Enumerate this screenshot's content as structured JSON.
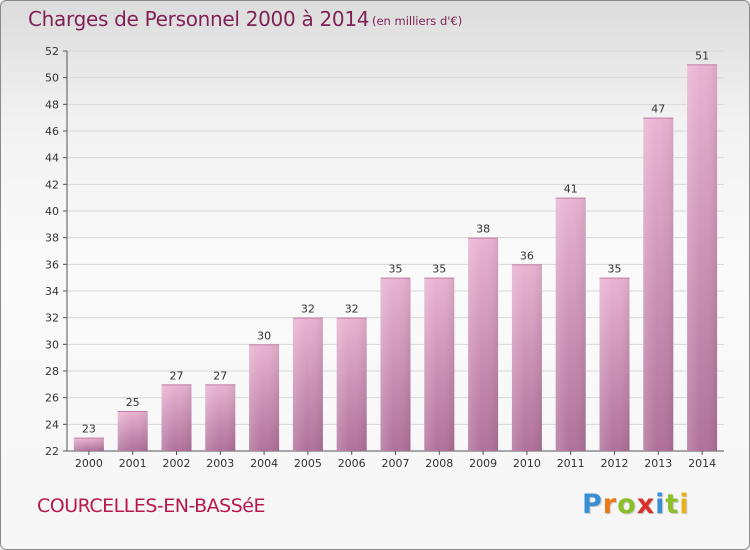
{
  "title": "Charges de Personnel 2000 à 2014",
  "subtitle": "(en milliers d'€)",
  "footer_name": "COURCELLES-EN-BASSéE",
  "brand": {
    "letters": [
      {
        "ch": "P",
        "color": "#3a8fd4"
      },
      {
        "ch": "r",
        "color": "#e87a1c"
      },
      {
        "ch": "o",
        "color": "#8bbf2a"
      },
      {
        "ch": "x",
        "color": "#d6322b"
      },
      {
        "ch": "i",
        "color": "#3a8fd4"
      },
      {
        "ch": "t",
        "color": "#8bbf2a"
      },
      {
        "ch": "i",
        "color": "#e8b21c"
      }
    ]
  },
  "colors": {
    "bar_top": "#e9b3d2",
    "bar_bottom": "#b0709a",
    "grid": "#d9d9d9",
    "axis": "#555555",
    "title": "#7f2256"
  },
  "chart_data": {
    "type": "bar",
    "categories": [
      "2000",
      "2001",
      "2002",
      "2003",
      "2004",
      "2005",
      "2006",
      "2007",
      "2008",
      "2009",
      "2010",
      "2011",
      "2012",
      "2013",
      "2014"
    ],
    "values": [
      23,
      25,
      27,
      27,
      30,
      32,
      32,
      35,
      35,
      38,
      36,
      41,
      35,
      47,
      51
    ],
    "ylim": [
      22,
      52
    ],
    "yticks": [
      22,
      24,
      26,
      28,
      30,
      32,
      34,
      36,
      38,
      40,
      42,
      44,
      46,
      48,
      50,
      52
    ],
    "grid": true,
    "data_labels": true
  }
}
